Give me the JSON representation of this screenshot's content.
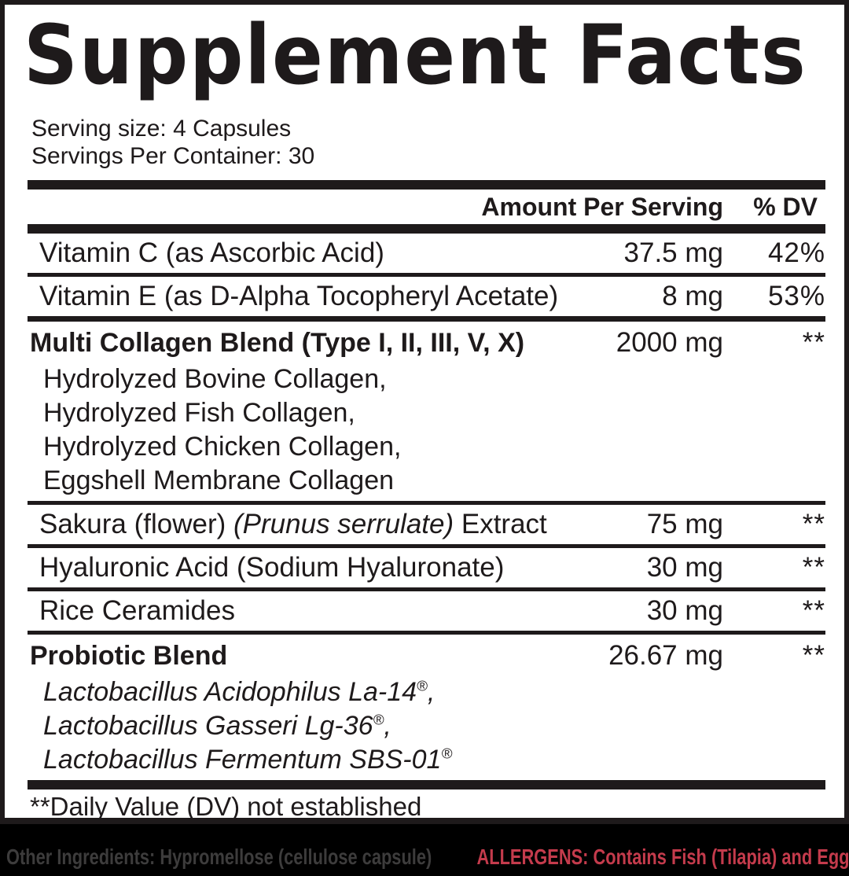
{
  "panel": {
    "title": "Supplement Facts",
    "serving_size": "Serving size: 4 Capsules",
    "servings_per_container": "Servings Per Container: 30",
    "columns": {
      "amount": "Amount Per Serving",
      "dv": "% DV"
    },
    "footnote": "**Daily Value (DV) not established"
  },
  "rows": [
    {
      "name": "Vitamin C (as Ascorbic Acid)",
      "amount": "37.5 mg",
      "dv": "42%"
    },
    {
      "name": "Vitamin E (as D-Alpha Tocopheryl Acetate)",
      "amount": "8 mg",
      "dv": "53%"
    },
    {
      "name": "Multi Collagen Blend (Type I, II, III, V, X)",
      "amount": "2000 mg",
      "dv": "**",
      "sub": [
        "Hydrolyzed Bovine Collagen,",
        "Hydrolyzed Fish Collagen,",
        "Hydrolyzed Chicken Collagen,",
        "Eggshell Membrane Collagen"
      ]
    },
    {
      "name_pre": "Sakura (flower) ",
      "name_italic": "(Prunus serrulate)",
      "name_post": " Extract",
      "amount": "75 mg",
      "dv": "**"
    },
    {
      "name": "Hyaluronic Acid (Sodium Hyaluronate)",
      "amount": "30 mg",
      "dv": "**"
    },
    {
      "name": "Rice Ceramides",
      "amount": "30 mg",
      "dv": "**"
    },
    {
      "name": "Probiotic Blend",
      "amount": "26.67 mg",
      "dv": "**",
      "sub": [
        {
          "text": "Lactobacillus Acidophilus La-14",
          "sup": "®",
          "tail": ","
        },
        {
          "text": "Lactobacillus Gasseri Lg-36",
          "sup": "®",
          "tail": ","
        },
        {
          "text": "Lactobacillus Fermentum SBS-01",
          "sup": "®",
          "tail": ""
        }
      ]
    }
  ],
  "footer": {
    "other_ingredients": "Other Ingredients: Hypromellose (cellulose capsule)",
    "allergens": "ALLERGENS: Contains Fish (Tilapia) and Egg"
  },
  "colors": {
    "ink": "#1e1a1b",
    "allergen_red": "#c43b4c",
    "footer_gray": "#3d3c3c",
    "background": "#000000"
  }
}
